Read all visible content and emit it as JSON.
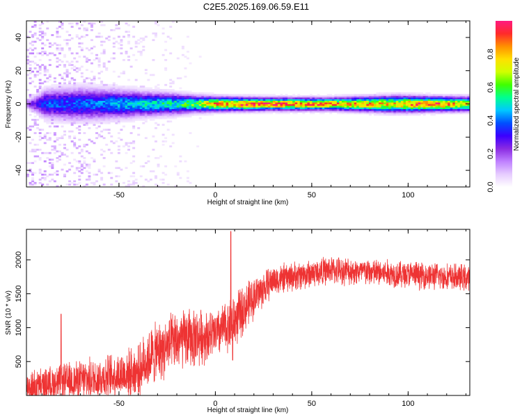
{
  "title": "C2E5.2025.169.06.59.E11",
  "colors": {
    "snr_line": "#ee3333",
    "colormap": [
      "#ffffff",
      "#e6ccff",
      "#bf80ff",
      "#8a2be2",
      "#3b00ff",
      "#0050ff",
      "#00c8ff",
      "#00ff90",
      "#40ff00",
      "#d0ff00",
      "#ffe000",
      "#ff9000",
      "#ff2a2a",
      "#ff1a80"
    ]
  },
  "chart_data": [
    {
      "type": "heatmap",
      "title": "C2E5.2025.169.06.59.E11",
      "xlabel": "Height of straight line (km)",
      "ylabel": "Frequency (Hz)",
      "xlim": [
        -98,
        132
      ],
      "ylim": [
        -50,
        50
      ],
      "x_ticks": [
        -50,
        0,
        50,
        100
      ],
      "y_ticks": [
        -40,
        -20,
        0,
        20,
        40
      ],
      "grid": false,
      "colorbar": {
        "label": "Normalized spectral amplitude",
        "range": [
          0,
          1
        ],
        "ticks": [
          0.0,
          0.2,
          0.4,
          0.6,
          0.8
        ]
      },
      "band_profile": [
        {
          "x": -98,
          "center_hz": 0,
          "half_width_hz": 2,
          "peak": 0.2,
          "scatter": 0.9
        },
        {
          "x": -88,
          "center_hz": 0,
          "half_width_hz": 7,
          "peak": 0.38,
          "scatter": 0.85
        },
        {
          "x": -70,
          "center_hz": 0,
          "half_width_hz": 8,
          "peak": 0.4,
          "scatter": 0.7
        },
        {
          "x": -50,
          "center_hz": 0,
          "half_width_hz": 7,
          "peak": 0.45,
          "scatter": 0.5
        },
        {
          "x": -38,
          "center_hz": 0,
          "half_width_hz": 6,
          "peak": 0.5,
          "scatter": 0.35
        },
        {
          "x": -20,
          "center_hz": 0,
          "half_width_hz": 5,
          "peak": 0.55,
          "scatter": 0.2
        },
        {
          "x": -10,
          "center_hz": 0,
          "half_width_hz": 4,
          "peak": 0.65,
          "scatter": 0.05
        },
        {
          "x": 0,
          "center_hz": 0,
          "half_width_hz": 3.5,
          "peak": 0.85,
          "scatter": 0.0
        },
        {
          "x": 25,
          "center_hz": 0,
          "half_width_hz": 3,
          "peak": 0.95,
          "scatter": 0.0
        },
        {
          "x": 60,
          "center_hz": 0,
          "half_width_hz": 3,
          "peak": 0.85,
          "scatter": 0.0
        },
        {
          "x": 95,
          "center_hz": 0,
          "half_width_hz": 4,
          "peak": 0.8,
          "scatter": 0.0
        },
        {
          "x": 110,
          "center_hz": 0,
          "half_width_hz": 3.5,
          "peak": 0.95,
          "scatter": 0.0
        },
        {
          "x": 132,
          "center_hz": 0,
          "half_width_hz": 3.5,
          "peak": 0.75,
          "scatter": 0.0
        }
      ]
    },
    {
      "type": "line",
      "xlabel": "Height of straight line (km)",
      "ylabel": "SNR (10 * v/v)",
      "xlim": [
        -98,
        132
      ],
      "ylim": [
        0,
        2450
      ],
      "x_ticks": [
        -50,
        0,
        50,
        100
      ],
      "y_ticks": [
        500,
        1000,
        1500,
        2000
      ],
      "grid": false,
      "envelope": [
        {
          "x": -98,
          "mean": 120,
          "spread": 250
        },
        {
          "x": -85,
          "mean": 170,
          "spread": 300
        },
        {
          "x": -60,
          "mean": 260,
          "spread": 350
        },
        {
          "x": -40,
          "mean": 350,
          "spread": 420
        },
        {
          "x": -35,
          "mean": 550,
          "spread": 500
        },
        {
          "x": -20,
          "mean": 800,
          "spread": 500
        },
        {
          "x": -12,
          "mean": 850,
          "spread": 500
        },
        {
          "x": 0,
          "mean": 900,
          "spread": 400
        },
        {
          "x": 10,
          "mean": 1100,
          "spread": 450
        },
        {
          "x": 20,
          "mean": 1450,
          "spread": 350
        },
        {
          "x": 30,
          "mean": 1700,
          "spread": 250
        },
        {
          "x": 60,
          "mean": 1850,
          "spread": 230
        },
        {
          "x": 90,
          "mean": 1800,
          "spread": 230
        },
        {
          "x": 132,
          "mean": 1730,
          "spread": 220
        }
      ],
      "spikes": [
        {
          "x": 8,
          "y": 2420
        },
        {
          "x": 9,
          "y": 520
        },
        {
          "x": -80,
          "y": 1200
        }
      ]
    }
  ]
}
